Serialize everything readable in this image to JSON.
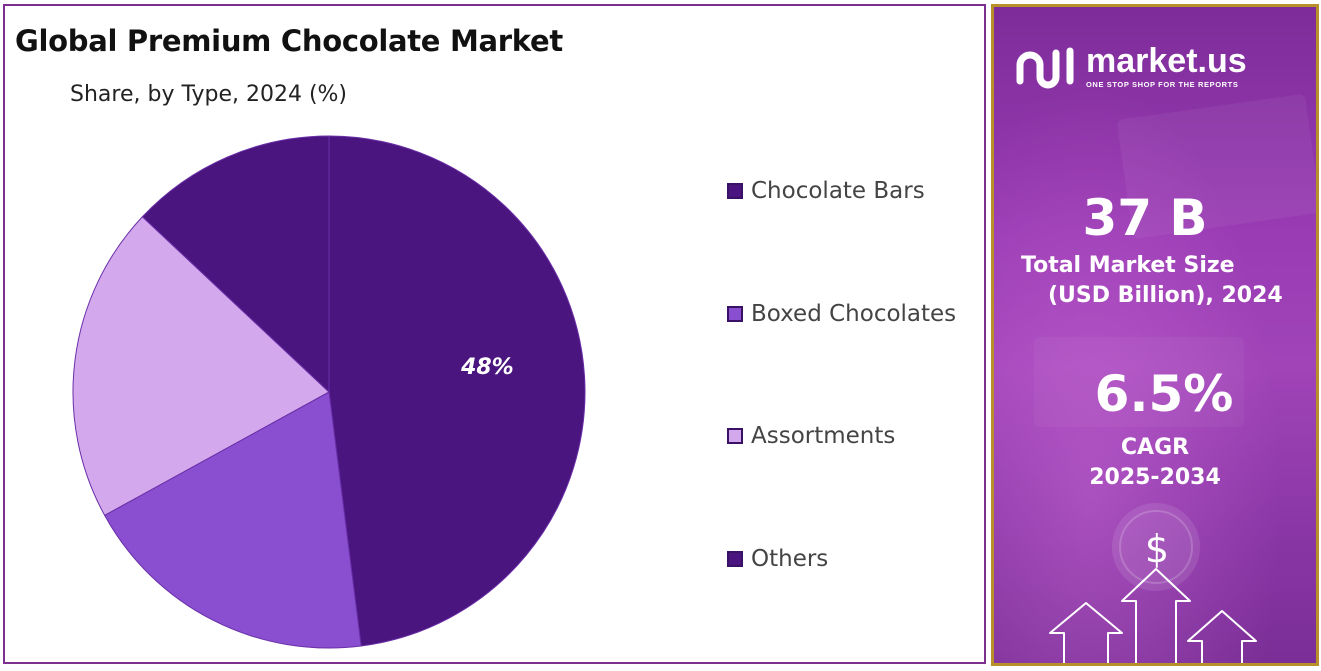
{
  "header": {
    "title": "Global Premium Chocolate Market",
    "subtitle": "Share, by Type, 2024 (%)"
  },
  "chart_data": {
    "type": "pie",
    "categories": [
      "Chocolate Bars",
      "Boxed Chocolates",
      "Assortments",
      "Others"
    ],
    "values": [
      48,
      19,
      20,
      13
    ],
    "colors": [
      "#4b1580",
      "#8a4fd0",
      "#d3a8ec",
      "#4b1580"
    ],
    "data_labels": [
      "48%",
      "",
      "",
      ""
    ],
    "legend_position": "right"
  },
  "legend": {
    "items": [
      {
        "label": "Chocolate Bars",
        "color": "#4b1580"
      },
      {
        "label": "Boxed Chocolates",
        "color": "#8a4fd0"
      },
      {
        "label": "Assortments",
        "color": "#d3a8ec"
      },
      {
        "label": "Others",
        "color": "#4b1580"
      }
    ]
  },
  "brand": {
    "name": "market.us",
    "tagline": "ONE STOP SHOP FOR THE REPORTS"
  },
  "stats": {
    "market_size_value": "37 B",
    "market_size_label_line1": "Total Market Size",
    "market_size_label_line2": "(USD Billion), 2024",
    "cagr_value": "6.5%",
    "cagr_label_line1": "CAGR",
    "cagr_label_line2": "2025-2034"
  },
  "decor": {
    "currency_symbol": "$"
  }
}
